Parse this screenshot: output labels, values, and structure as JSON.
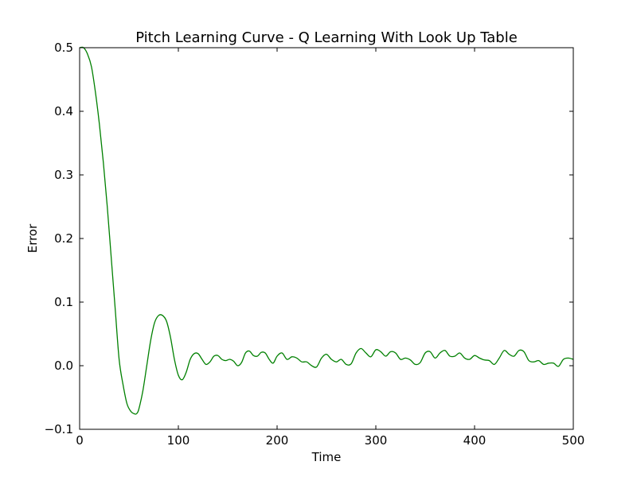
{
  "chart_data": {
    "type": "line",
    "title": "Pitch Learning Curve - Q Learning With Look Up Table",
    "xlabel": "Time",
    "ylabel": "Error",
    "xlim": [
      0,
      500
    ],
    "ylim": [
      -0.1,
      0.5
    ],
    "xticks": [
      0,
      100,
      200,
      300,
      400,
      500
    ],
    "yticks": [
      -0.1,
      0.0,
      0.1,
      0.2,
      0.3,
      0.4,
      0.5
    ],
    "xtick_labels": [
      "0",
      "100",
      "200",
      "300",
      "400",
      "500"
    ],
    "ytick_labels": [
      "−0.1",
      "0.0",
      "0.1",
      "0.2",
      "0.3",
      "0.4",
      "0.5"
    ],
    "grid": false,
    "series": [
      {
        "color": "#008000",
        "x": [
          0,
          4,
          8,
          12,
          16,
          20,
          24,
          28,
          32,
          36,
          40,
          44,
          48,
          52,
          56,
          58,
          60,
          64,
          68,
          72,
          76,
          80,
          84,
          88,
          92,
          96,
          100,
          104,
          108,
          112,
          116,
          120,
          124,
          128,
          132,
          136,
          140,
          144,
          148,
          152,
          156,
          160,
          164,
          168,
          172,
          176,
          180,
          184,
          188,
          192,
          196,
          200,
          205,
          210,
          215,
          220,
          225,
          230,
          235,
          240,
          245,
          250,
          255,
          260,
          265,
          270,
          275,
          280,
          285,
          290,
          295,
          300,
          305,
          310,
          315,
          320,
          325,
          330,
          335,
          340,
          345,
          350,
          355,
          360,
          365,
          370,
          375,
          380,
          385,
          390,
          395,
          400,
          405,
          410,
          415,
          420,
          425,
          430,
          435,
          440,
          445,
          450,
          455,
          460,
          465,
          470,
          475,
          480,
          485,
          490,
          495,
          500
        ],
        "y": [
          0.5,
          0.5,
          0.49,
          0.47,
          0.43,
          0.38,
          0.32,
          0.25,
          0.17,
          0.09,
          0.01,
          -0.03,
          -0.06,
          -0.072,
          -0.076,
          -0.075,
          -0.068,
          -0.04,
          0.0,
          0.04,
          0.068,
          0.079,
          0.079,
          0.07,
          0.045,
          0.01,
          -0.015,
          -0.022,
          -0.01,
          0.01,
          0.019,
          0.019,
          0.01,
          0.002,
          0.006,
          0.015,
          0.016,
          0.01,
          0.008,
          0.01,
          0.007,
          0.0,
          0.005,
          0.02,
          0.023,
          0.016,
          0.015,
          0.021,
          0.02,
          0.01,
          0.004,
          0.015,
          0.02,
          0.01,
          0.014,
          0.012,
          0.006,
          0.006,
          0.0,
          -0.002,
          0.012,
          0.018,
          0.01,
          0.006,
          0.01,
          0.002,
          0.003,
          0.02,
          0.027,
          0.02,
          0.014,
          0.025,
          0.022,
          0.015,
          0.022,
          0.02,
          0.01,
          0.012,
          0.009,
          0.002,
          0.005,
          0.02,
          0.022,
          0.012,
          0.02,
          0.024,
          0.015,
          0.015,
          0.02,
          0.012,
          0.01,
          0.016,
          0.012,
          0.009,
          0.008,
          0.002,
          0.012,
          0.024,
          0.018,
          0.015,
          0.024,
          0.022,
          0.008,
          0.006,
          0.008,
          0.002,
          0.004,
          0.004,
          -0.001,
          0.01,
          0.012,
          0.01
        ]
      }
    ]
  }
}
